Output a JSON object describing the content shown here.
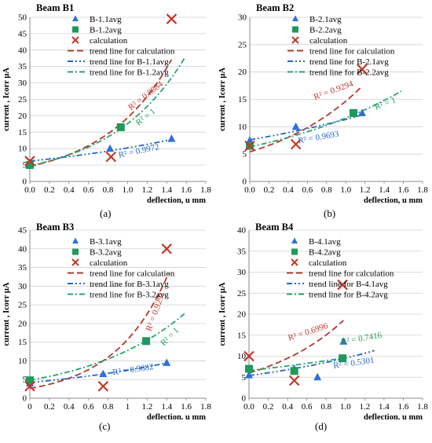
{
  "colors": {
    "blue": "#2f6fd6",
    "green": "#1e9a5a",
    "red": "#c0392b",
    "trend_red": "#b03a2e",
    "trend_blue": "#1f66c9",
    "trend_green": "#2aa36b",
    "grid": "#d0d0d0"
  },
  "chart_data": [
    {
      "type": "scatter",
      "title": "Beam B1",
      "caption": "(a)",
      "xlabel": "deflection, u mm",
      "ylabel": "current , Icorr μA",
      "xlim": [
        0,
        1.8
      ],
      "ylim": [
        0,
        50
      ],
      "xticks": [
        "0.0",
        "0.2",
        "0.4",
        "0.6",
        "0.8",
        "1.0",
        "1.2",
        "1.4",
        "1.6",
        "1.8"
      ],
      "yticks": [
        "0",
        "5",
        "10",
        "15",
        "20",
        "25",
        "30",
        "35",
        "40",
        "45",
        "50"
      ],
      "grid": "horizontal",
      "legend": [
        "B-1.1avg",
        "B-1.2avg",
        "calculation",
        "trend line for calculation",
        "trend line for B-1.1avg",
        "trend line for B-1.2avg"
      ],
      "series": [
        {
          "name": "B-1.1avg",
          "kind": "points",
          "marker": "triangle",
          "color": "#2f6fd6",
          "x": [
            0,
            0.82,
            1.45
          ],
          "y": [
            5.5,
            10,
            13
          ]
        },
        {
          "name": "B-1.2avg",
          "kind": "points",
          "marker": "square",
          "color": "#1e9a5a",
          "x": [
            0,
            0.93
          ],
          "y": [
            5,
            16.5
          ]
        },
        {
          "name": "calculation",
          "kind": "points",
          "marker": "cross",
          "color": "#c0392b",
          "x": [
            0,
            0.83,
            1.45
          ],
          "y": [
            6.2,
            7.5,
            49.5
          ]
        },
        {
          "name": "trend line for calculation",
          "kind": "exp",
          "a": 4.6,
          "b": 1.44,
          "xrange": [
            0,
            1.45
          ],
          "color": "#b03a2e",
          "dash": "8,4"
        },
        {
          "name": "trend line for B-1.1avg",
          "kind": "exp",
          "a": 6.2,
          "b": 0.5,
          "xrange": [
            0,
            1.45
          ],
          "color": "#1f66c9",
          "dash": "7,3,2,3,2,3"
        },
        {
          "name": "trend line for B-1.2avg",
          "kind": "exp",
          "a": 4.8,
          "b": 1.3,
          "xrange": [
            0,
            1.58
          ],
          "color": "#2aa36b",
          "dash": "7,3,2,3"
        }
      ],
      "annotations": [
        {
          "text": "R² = 0.8884",
          "color": "#c0392b",
          "x": 1.2,
          "y": 25.5,
          "rotate": -38
        },
        {
          "text": "R² = 1",
          "color": "#1e9a5a",
          "x": 1.2,
          "y": 19,
          "rotate": -38
        },
        {
          "text": "R² = 0.9972",
          "color": "#1f66c9",
          "x": 1.12,
          "y": 8.5,
          "rotate": -12
        }
      ]
    },
    {
      "type": "scatter",
      "title": "Beam B2",
      "caption": "(b)",
      "xlabel": "deflection, u mm",
      "ylabel": "current , Icorr μA",
      "xlim": [
        0,
        1.8
      ],
      "ylim": [
        0,
        30
      ],
      "xticks": [
        "0.0",
        "0.2",
        "0.4",
        "0.6",
        "0.8",
        "1.0",
        "1.2",
        "1.4",
        "1.6",
        "1.8"
      ],
      "yticks": [
        "0",
        "5",
        "10",
        "15",
        "20",
        "25",
        "30"
      ],
      "grid": "horizontal",
      "legend": [
        "B-2.1avg",
        "B-2.2avg",
        "calculation",
        "trend line for calculation",
        "trend line for B-2.1avg",
        "trend line for B-2.2avg"
      ],
      "series": [
        {
          "name": "B-2.1avg",
          "kind": "points",
          "marker": "triangle",
          "color": "#2f6fd6",
          "x": [
            0,
            0.48,
            1.17
          ],
          "y": [
            7.5,
            10,
            12.5
          ]
        },
        {
          "name": "B-2.2avg",
          "kind": "points",
          "marker": "square",
          "color": "#1e9a5a",
          "x": [
            0,
            1.08
          ],
          "y": [
            6.5,
            12.5
          ]
        },
        {
          "name": "calculation",
          "kind": "points",
          "marker": "cross",
          "color": "#c0392b",
          "x": [
            0,
            0.48,
            1.17
          ],
          "y": [
            6.5,
            6.8,
            20.5
          ]
        },
        {
          "name": "trend line for calculation",
          "kind": "exp",
          "a": 5.4,
          "b": 1.0,
          "xrange": [
            0,
            1.17
          ],
          "color": "#b03a2e",
          "dash": "8,4"
        },
        {
          "name": "trend line for B-2.1avg",
          "kind": "exp",
          "a": 7.6,
          "b": 0.4,
          "xrange": [
            0,
            1.17
          ],
          "color": "#1f66c9",
          "dash": "7,3,2,3,2,3"
        },
        {
          "name": "trend line for B-2.2avg",
          "kind": "exp",
          "a": 6.3,
          "b": 0.61,
          "xrange": [
            0,
            1.58
          ],
          "color": "#2aa36b",
          "dash": "7,3,2,3"
        }
      ],
      "annotations": [
        {
          "text": "R² = 0.9294",
          "color": "#c0392b",
          "x": 0.88,
          "y": 16.2,
          "rotate": -20
        },
        {
          "text": "R² = 1",
          "color": "#1e9a5a",
          "x": 1.42,
          "y": 13.8,
          "rotate": -20
        },
        {
          "text": "R² = 0.9693",
          "color": "#1f66c9",
          "x": 0.72,
          "y": 7.6,
          "rotate": -10
        }
      ]
    },
    {
      "type": "scatter",
      "title": "Beam B3",
      "caption": "(c)",
      "xlabel": "deflection, u mm",
      "ylabel": "current , Icorr μA",
      "xlim": [
        0,
        1.8
      ],
      "ylim": [
        0,
        45
      ],
      "xticks": [
        "0",
        "0.2",
        "0.4",
        "0.6",
        "0.8",
        "1",
        "1.2",
        "1.4",
        "1.6",
        "1.8"
      ],
      "yticks": [
        "0",
        "5",
        "10",
        "15",
        "20",
        "25",
        "30",
        "35",
        "40",
        "45"
      ],
      "grid": "horizontal",
      "legend": [
        "B-3.1avg",
        "B-3.2avg",
        "calculation",
        "trend line for calculation",
        "trend line for B-3.1avg",
        "trend line for B-3.2avg"
      ],
      "series": [
        {
          "name": "B-3.1avg",
          "kind": "points",
          "marker": "triangle",
          "color": "#2f6fd6",
          "x": [
            0,
            0.75,
            1.4
          ],
          "y": [
            4,
            6.5,
            9.5
          ]
        },
        {
          "name": "B-3.2avg",
          "kind": "points",
          "marker": "square",
          "color": "#1e9a5a",
          "x": [
            0,
            1.19
          ],
          "y": [
            4.8,
            15.3
          ]
        },
        {
          "name": "calculation",
          "kind": "points",
          "marker": "cross",
          "color": "#c0392b",
          "x": [
            0,
            0.75,
            1.4
          ],
          "y": [
            3.2,
            3.2,
            40
          ]
        },
        {
          "name": "trend line for calculation",
          "kind": "exp",
          "a": 2.6,
          "b": 1.8,
          "xrange": [
            0,
            1.42
          ],
          "color": "#b03a2e",
          "dash": "8,4"
        },
        {
          "name": "trend line for B-3.1avg",
          "kind": "exp",
          "a": 4.2,
          "b": 0.58,
          "xrange": [
            0,
            1.42
          ],
          "color": "#1f66c9",
          "dash": "7,3,2,3,2,3"
        },
        {
          "name": "trend line for B-3.2avg",
          "kind": "exp",
          "a": 4.8,
          "b": 0.98,
          "xrange": [
            0,
            1.6
          ],
          "color": "#2aa36b",
          "dash": "7,3,2,3"
        }
      ],
      "annotations": [
        {
          "text": "R² = 0.9291",
          "color": "#c0392b",
          "x": 1.31,
          "y": 23,
          "rotate": -70
        },
        {
          "text": "R² = 1",
          "color": "#1e9a5a",
          "x": 1.45,
          "y": 16,
          "rotate": -45
        },
        {
          "text": "R² = 0.9882",
          "color": "#1f66c9",
          "x": 1.06,
          "y": 7,
          "rotate": -8
        }
      ]
    },
    {
      "type": "scatter",
      "title": "Beam B4",
      "caption": "(d)",
      "xlabel": "deflection, u mm",
      "ylabel": "current , Icorr μA",
      "xlim": [
        0,
        1.8
      ],
      "ylim": [
        0,
        40
      ],
      "xticks": [
        "0.0",
        "0.2",
        "0.4",
        "0.6",
        "0.8",
        "1.0",
        "1.2",
        "1.4",
        "1.6",
        "1.8"
      ],
      "yticks": [
        "0",
        "5",
        "10",
        "15",
        "20",
        "25",
        "30",
        "35",
        "40"
      ],
      "grid": "horizontal",
      "legend": [
        "B-4.1avg",
        "B-4.2avg",
        "calculation",
        "trend line for calculation",
        "trend line for B-4.1avg",
        "trend line for B-4.2avg"
      ],
      "series": [
        {
          "name": "B-4.1avg",
          "kind": "points",
          "marker": "triangle",
          "color": "#2f6fd6",
          "x": [
            0,
            0.47,
            0.71,
            0.98
          ],
          "y": [
            5.5,
            7,
            5,
            13.5
          ]
        },
        {
          "name": "B-4.2avg",
          "kind": "points",
          "marker": "square",
          "color": "#1e9a5a",
          "x": [
            0,
            0.47,
            0.97
          ],
          "y": [
            7,
            6.5,
            9.5
          ]
        },
        {
          "name": "calculation",
          "kind": "points",
          "marker": "cross",
          "color": "#c0392b",
          "x": [
            0,
            0.47,
            0.97
          ],
          "y": [
            10,
            4.2,
            27
          ]
        },
        {
          "name": "trend line for calculation",
          "kind": "exp",
          "a": 6.0,
          "b": 1.15,
          "xrange": [
            0,
            0.98
          ],
          "color": "#b03a2e",
          "dash": "8,4"
        },
        {
          "name": "trend line for B-4.1avg",
          "kind": "exp",
          "a": 5.4,
          "b": 0.57,
          "xrange": [
            0,
            1.3
          ],
          "color": "#1f66c9",
          "dash": "7,3,2,3,2,3"
        },
        {
          "name": "trend line for B-4.2avg",
          "kind": "exp",
          "a": 6.6,
          "b": 0.38,
          "xrange": [
            0,
            0.98
          ],
          "color": "#2aa36b",
          "dash": "7,3,2,3"
        }
      ],
      "annotations": [
        {
          "text": "R² = 0.6996",
          "color": "#c0392b",
          "x": 0.62,
          "y": 15.2,
          "rotate": -18
        },
        {
          "text": "R² = 0.7416",
          "color": "#1e9a5a",
          "x": 1.17,
          "y": 13.6,
          "rotate": -10
        },
        {
          "text": "R² = 0.5301",
          "color": "#1f66c9",
          "x": 1.09,
          "y": 7.8,
          "rotate": -8
        }
      ]
    }
  ]
}
